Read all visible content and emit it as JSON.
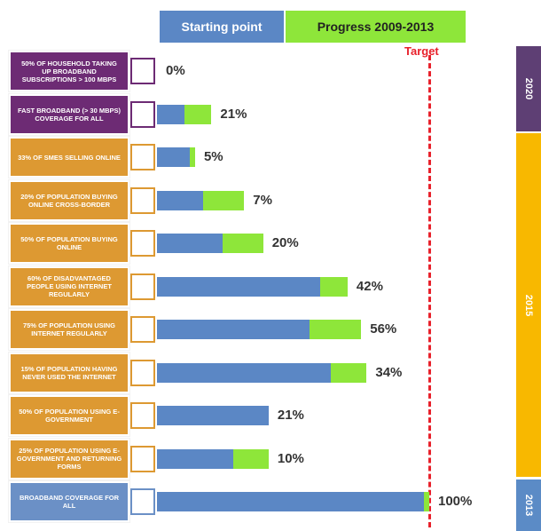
{
  "chart_data": {
    "type": "bar",
    "orientation": "horizontal",
    "stacked": true,
    "target_label": "Target",
    "target_value": 100,
    "xlim": [
      0,
      100
    ],
    "categories": [
      "50% OF HOUSEHOLD TAKING UP BROADBAND SUBSCRIPTIONS > 100 MBPS",
      "FAST BROADBAND (> 30 MBPS) COVERAGE FOR ALL",
      "33% OF SMES SELLING ONLINE",
      "20% OF POPULATION BUYING ONLINE CROSS-BORDER",
      "50% OF POPULATION BUYING ONLINE",
      "60% OF DISADVANTAGED PEOPLE USING INTERNET REGULARLY",
      "75% OF POPULATION USING INTERNET REGULARLY",
      "15% OF POPULATION HAVING NEVER USED THE INTERNET",
      "50% OF POPULATION USING E-GOVERNMENT",
      "25% OF POPULATION USING E-GOVERNMENT AND RETURNING FORMS",
      "BROADBAND COVERAGE FOR ALL"
    ],
    "row_labels": [
      "0%",
      "21%",
      "5%",
      "7%",
      "20%",
      "42%",
      "56%",
      "34%",
      "21%",
      "10%",
      "100%"
    ],
    "series": [
      {
        "name": "Starting point",
        "color": "#5b87c5",
        "values": [
          0,
          10,
          12,
          17,
          24,
          60,
          56,
          64,
          41,
          28,
          98
        ]
      },
      {
        "name": "Progress 2009-2013",
        "color": "#8ee63a",
        "values": [
          0,
          10,
          2,
          15,
          15,
          10,
          19,
          13,
          0,
          13,
          2
        ]
      }
    ],
    "periods": [
      {
        "label": "2020",
        "color": "#5e3f74",
        "box_color": "#6d2b74"
      },
      {
        "label": "2015",
        "color": "#f8b800",
        "box_color": "#dd9932"
      },
      {
        "label": "2013",
        "color": "#5b8bc6",
        "box_color": "#6b90c6"
      }
    ]
  }
}
